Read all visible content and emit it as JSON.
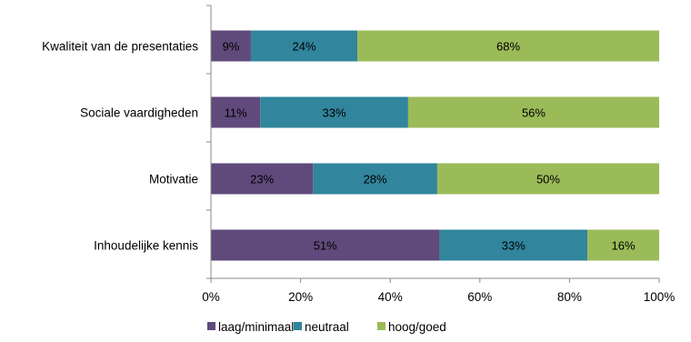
{
  "chart_data": {
    "type": "bar",
    "orientation": "horizontal",
    "stacked": true,
    "percent_stacked": true,
    "categories": [
      "Kwaliteit van de presentaties",
      "Sociale vaardigheden",
      "Motivatie",
      "Inhoudelijke kennis"
    ],
    "series": [
      {
        "name": "laag/minimaal",
        "color": "#604a7b",
        "values": [
          9,
          11,
          23,
          51
        ]
      },
      {
        "name": "neutraal",
        "color": "#31859c",
        "values": [
          24,
          33,
          28,
          33
        ]
      },
      {
        "name": "hoog/goed",
        "color": "#9bbb59",
        "values": [
          68,
          56,
          50,
          16
        ]
      }
    ],
    "data_labels": [
      [
        "9%",
        "24%",
        "68%"
      ],
      [
        "11%",
        "33%",
        "56%"
      ],
      [
        "23%",
        "28%",
        "50%"
      ],
      [
        "51%",
        "33%",
        "16%"
      ]
    ],
    "xlim": [
      0,
      100
    ],
    "x_ticks": [
      "0%",
      "20%",
      "40%",
      "60%",
      "80%",
      "100%"
    ],
    "grid": false,
    "legend_position": "bottom"
  }
}
